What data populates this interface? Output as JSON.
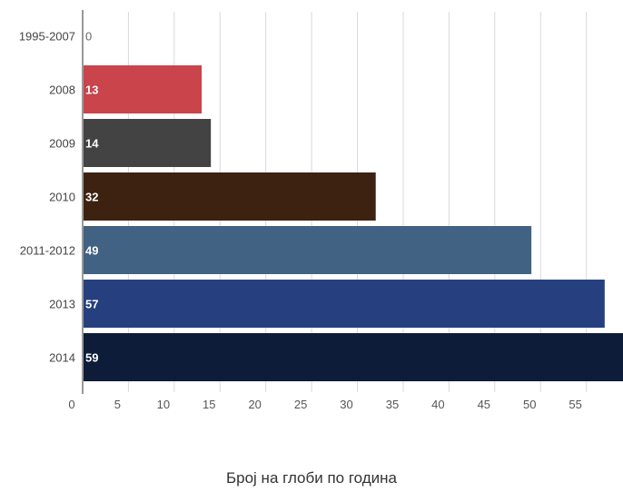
{
  "chart_data": {
    "type": "bar",
    "orientation": "horizontal",
    "caption": "Број на глоби по година",
    "categories": [
      "1995-2007",
      "2008",
      "2009",
      "2010",
      "2011-2012",
      "2013",
      "2014"
    ],
    "values": [
      0,
      13,
      14,
      32,
      49,
      57,
      59
    ],
    "colors": [
      "#c8c8c8",
      "#c9444b",
      "#434343",
      "#3d2211",
      "#426283",
      "#26407f",
      "#0d1c38"
    ],
    "x_ticks": [
      0,
      5,
      10,
      15,
      20,
      25,
      30,
      35,
      40,
      45,
      50,
      55
    ],
    "xlim": [
      0,
      59
    ],
    "grid": true,
    "data_labels": true
  }
}
